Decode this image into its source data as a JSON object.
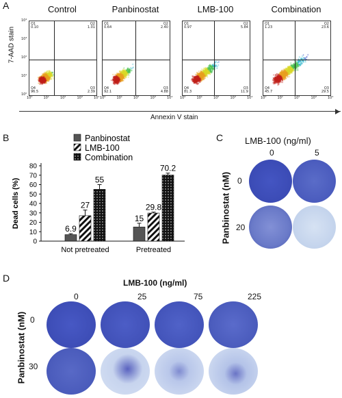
{
  "panelA": {
    "letter": "A",
    "y_axis_label": "7-AAD stain",
    "x_axis_label": "Annexin V stain",
    "y_ticks": [
      "10⁴",
      "10³",
      "10²",
      "10¹",
      "10⁰"
    ],
    "x_ticks": [
      "10⁰",
      "10¹",
      "10²",
      "10³",
      "10⁴"
    ],
    "plots": [
      {
        "title": "Control",
        "q1": "Q1",
        "q1v": "0.10",
        "q2": "Q2",
        "q2v": "1.01",
        "q4": "Q4",
        "q4v": "96.5",
        "q3": "Q3",
        "q3v": "2.39"
      },
      {
        "title": "Panbinostat",
        "q1": "Q1",
        "q1v": "0.64",
        "q2": "Q2",
        "q2v": "2.40",
        "q4": "Q4",
        "q4v": "92.1",
        "q3": "Q3",
        "q3v": "4.88"
      },
      {
        "title": "LMB-100",
        "q1": "Q1",
        "q1v": "0.97",
        "q2": "Q2",
        "q2v": "5.84",
        "q4": "Q4",
        "q4v": "81.3",
        "q3": "Q3",
        "q3v": "11.9"
      },
      {
        "title": "Combination",
        "q1": "Q1",
        "q1v": "1.23",
        "q2": "Q2",
        "q2v": "23.6",
        "q4": "Q4",
        "q4v": "45.7",
        "q3": "Q3",
        "q3v": "29.5"
      }
    ]
  },
  "chart_data": {
    "type": "bar",
    "categories": [
      "Not pretreated",
      "Pretreated"
    ],
    "series": [
      {
        "name": "Panbinostat",
        "values": [
          6.9,
          15
        ],
        "error": [
          1,
          4
        ]
      },
      {
        "name": "LMB-100",
        "values": [
          27,
          29.8
        ],
        "error": [
          6,
          1
        ]
      },
      {
        "name": "Combination",
        "values": [
          55,
          70.2
        ],
        "error": [
          5,
          2
        ]
      }
    ],
    "ylabel": "Dead cells (%)",
    "ylim": [
      0,
      80
    ],
    "yticks": [
      0,
      10,
      20,
      30,
      40,
      50,
      60,
      70,
      80
    ],
    "value_labels": [
      "6.9",
      "27",
      "55",
      "15",
      "29.8",
      "70.2"
    ],
    "legend_position": "top"
  },
  "panelB": {
    "letter": "B"
  },
  "panelC": {
    "letter": "C",
    "title": "LMB-100 (ng/ml)",
    "columns": [
      "0",
      "5"
    ],
    "row_axis_label": "Panbinostat (nM)",
    "rows": [
      "0",
      "20"
    ]
  },
  "panelD": {
    "letter": "D",
    "title": "LMB-100  (ng/ml)",
    "columns": [
      "0",
      "25",
      "75",
      "225"
    ],
    "row_axis_label": "Panbinostat (nM)",
    "rows": [
      "0",
      "30"
    ]
  },
  "colors": {
    "panbinostat": "#555555",
    "dish_blue": "#3e4fb8",
    "dish_light": "#b8c8e6",
    "flow_gate": "#222222"
  }
}
